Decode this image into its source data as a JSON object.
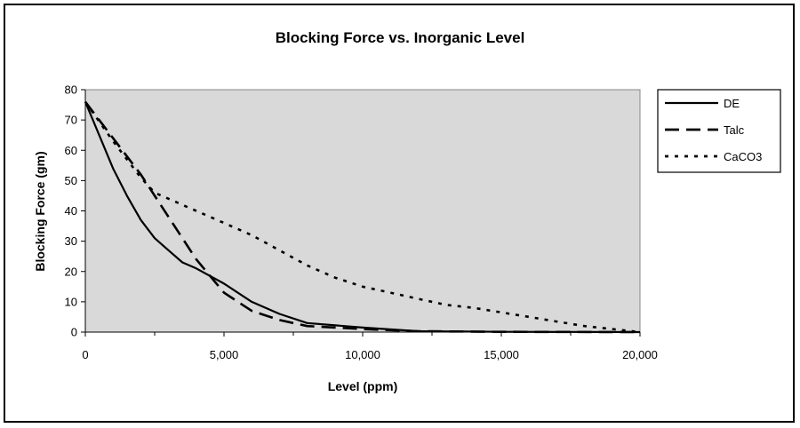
{
  "chart_data": {
    "type": "line",
    "title": "Blocking Force vs. Inorganic Level",
    "xlabel": "Level (ppm)",
    "ylabel": "Blocking Force (gm)",
    "xlim": [
      0,
      20000
    ],
    "ylim": [
      0,
      80
    ],
    "x_ticks": [
      0,
      5000,
      10000,
      15000,
      20000
    ],
    "x_tick_labels": [
      "0",
      "5,000",
      "10,000",
      "15,000",
      "20,000"
    ],
    "y_ticks": [
      0,
      10,
      20,
      30,
      40,
      50,
      60,
      70,
      80
    ],
    "y_tick_labels": [
      "0",
      "10",
      "20",
      "30",
      "40",
      "50",
      "60",
      "70",
      "80"
    ],
    "plot_background": "#d9d9d9",
    "grid": false,
    "legend_position": "right",
    "series": [
      {
        "name": "DE",
        "style": "solid",
        "x": [
          0,
          500,
          1000,
          1500,
          2000,
          2500,
          3000,
          3500,
          4000,
          5000,
          6000,
          7000,
          8000,
          10000,
          12000,
          15000,
          20000
        ],
        "y": [
          76,
          65,
          54,
          45,
          37,
          31,
          27,
          23,
          21,
          16,
          10,
          6,
          3,
          1.5,
          0.3,
          0.1,
          0
        ]
      },
      {
        "name": "Talc",
        "style": "dashed",
        "x": [
          0,
          1000,
          2000,
          3000,
          4000,
          5000,
          6000,
          7000,
          8000,
          10000,
          12000,
          15000,
          20000
        ],
        "y": [
          76,
          64,
          52,
          38,
          24,
          13,
          7,
          4,
          2,
          1,
          0.3,
          0.1,
          0
        ]
      },
      {
        "name": "CaCO3",
        "style": "dotted",
        "x": [
          0,
          1000,
          2000,
          2500,
          3000,
          4000,
          5000,
          6000,
          7000,
          8000,
          9000,
          10000,
          11000,
          12000,
          13000,
          14000,
          15000,
          16000,
          17000,
          18000,
          19000,
          20000
        ],
        "y": [
          76,
          63,
          51,
          46,
          44,
          40,
          36,
          32,
          27,
          22,
          18,
          15,
          13,
          11,
          9,
          8,
          6.5,
          5,
          3.5,
          2,
          1,
          0
        ]
      }
    ]
  }
}
